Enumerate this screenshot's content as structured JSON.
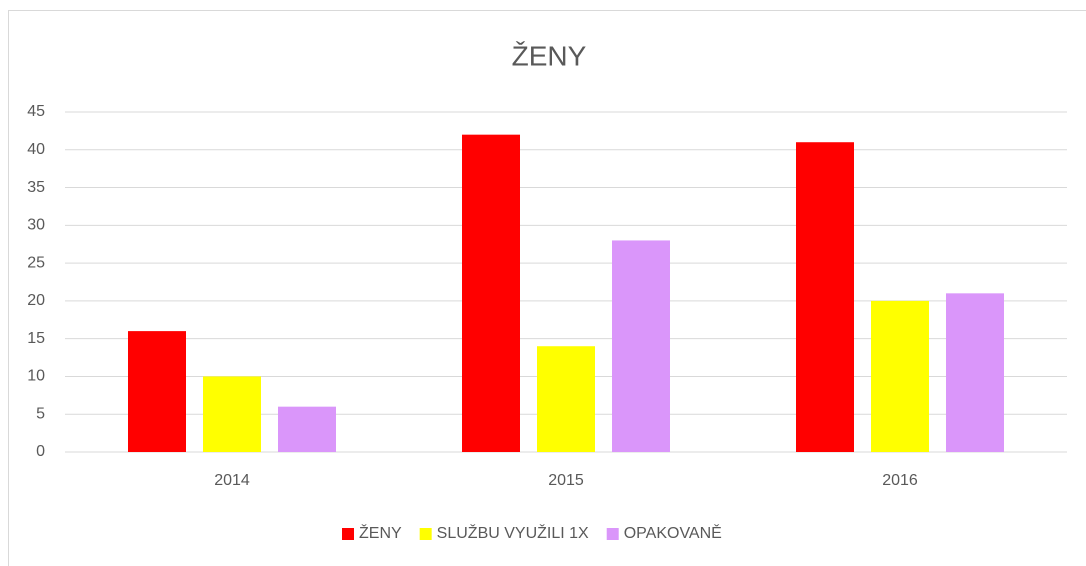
{
  "chart_data": {
    "type": "bar",
    "title": "ŽENY",
    "categories": [
      "2014",
      "2015",
      "2016"
    ],
    "series": [
      {
        "name": "ŽENY",
        "color": "#ff0000",
        "values": [
          16,
          42,
          41
        ]
      },
      {
        "name": "SLUŽBU VYUŽILI 1X",
        "color": "#ffff00",
        "values": [
          10,
          14,
          20
        ]
      },
      {
        "name": "OPAKOVANĚ",
        "color": "#da96fa",
        "values": [
          6,
          28,
          21
        ]
      }
    ],
    "ylim": [
      0,
      45
    ],
    "yticks": [
      0,
      5,
      10,
      15,
      20,
      25,
      30,
      35,
      40,
      45
    ],
    "grid": true,
    "legend": "bottom"
  }
}
